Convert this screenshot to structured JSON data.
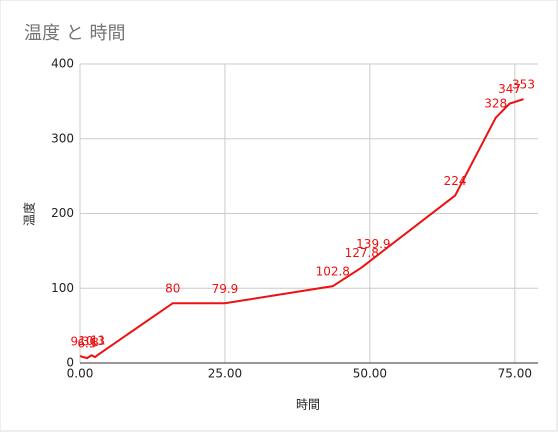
{
  "chart_data": {
    "type": "line",
    "title": "温度 と 時間",
    "x_label": "時間",
    "y_label": "温度",
    "series": [
      {
        "name": "温度",
        "color": "#ee1111",
        "x": [
          0,
          1.2,
          2,
          2.6,
          3.1,
          16,
          25,
          43.6,
          48.6,
          50.6,
          64.7,
          71.7,
          74.1,
          76.5
        ],
        "values": [
          9.3,
          6.5,
          10.3,
          8,
          11,
          80,
          79.9,
          102.8,
          127.8,
          139.9,
          224,
          328,
          347,
          353
        ]
      }
    ],
    "xlim": [
      0,
      79
    ],
    "ylim": [
      0,
      400
    ],
    "xticks": [
      {
        "value": 0,
        "label": "0.00"
      },
      {
        "value": 25,
        "label": "25.00"
      },
      {
        "value": 50,
        "label": "50.00"
      },
      {
        "value": 75,
        "label": "75.00"
      }
    ],
    "yticks": [
      0,
      100,
      200,
      300,
      400
    ],
    "grid": true,
    "data_labels": true
  }
}
